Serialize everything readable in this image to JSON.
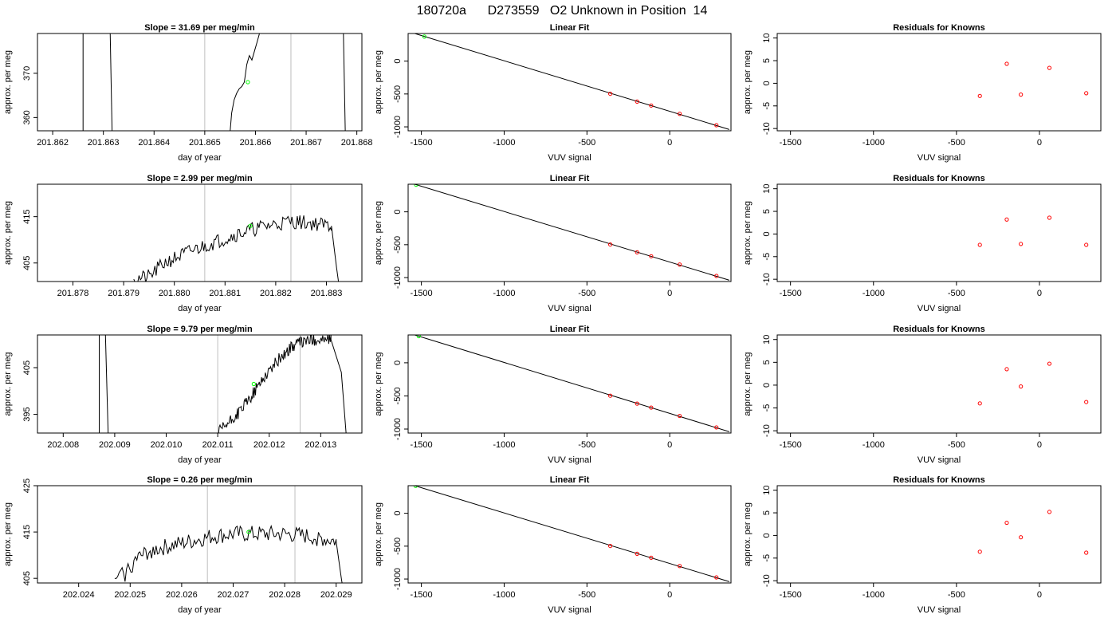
{
  "main_title": "180720a      D273559   O2 Unknown in Position  14",
  "colors": {
    "trace": "#000000",
    "guide": "#bebebe",
    "unknown": "#00ff00",
    "known": "#ff0000"
  },
  "chart_data": [
    {
      "type": "line",
      "panel": "slope-row-1",
      "title": "Slope =  31.69  per meg/min",
      "xlabel": "day of year",
      "ylabel": "approx. per meg",
      "xlim": [
        201.8617,
        201.8681
      ],
      "ylim": [
        357,
        379
      ],
      "xticks": [
        201.862,
        201.863,
        201.864,
        201.865,
        201.866,
        201.867,
        201.868
      ],
      "xtick_labels": [
        "201.862",
        "201.863",
        "201.864",
        "201.865",
        "201.866",
        "201.867",
        "201.868"
      ],
      "yticks": [
        360,
        370
      ],
      "ytick_labels": [
        "360",
        "370"
      ],
      "vlines": [
        201.865,
        201.8667
      ],
      "segments": [
        [
          [
            201.8626,
            340
          ],
          [
            201.8626,
            400
          ]
        ],
        [
          [
            201.8631,
            400
          ],
          [
            201.8632,
            340
          ]
        ],
        [
          [
            201.86545,
            350
          ],
          [
            201.86553,
            361
          ],
          [
            201.86558,
            364
          ],
          [
            201.86563,
            365.5
          ],
          [
            201.86568,
            366.5
          ],
          [
            201.86573,
            367
          ],
          [
            201.86578,
            368
          ],
          [
            201.86583,
            372
          ],
          [
            201.86588,
            374
          ],
          [
            201.86593,
            373
          ],
          [
            201.86598,
            375
          ],
          [
            201.86603,
            377
          ],
          [
            201.86608,
            379
          ],
          [
            201.8662,
            390
          ]
        ],
        [
          [
            201.8677,
            400
          ],
          [
            201.8678,
            340
          ]
        ]
      ],
      "unknown_point": [
        201.86585,
        368
      ]
    },
    {
      "type": "scatter",
      "panel": "linear-fit-row-1",
      "title": "Linear Fit",
      "xlabel": "VUV signal",
      "ylabel": "approx. per meg",
      "xlim": [
        -1580,
        370
      ],
      "ylim": [
        -1060,
        420
      ],
      "xticks": [
        -1500,
        -1000,
        -500,
        0
      ],
      "xtick_labels": [
        "-1500",
        "-1000",
        "-500",
        "0"
      ],
      "yticks": [
        -1000,
        -500,
        0
      ],
      "ytick_labels": [
        "-1000",
        "-500",
        "0"
      ],
      "fit_line": [
        [
          -1540,
          420
        ],
        [
          360,
          -1040
        ]
      ],
      "known_points": [
        [
          -359,
          -497
        ],
        [
          -197,
          -616
        ],
        [
          -112,
          -676
        ],
        [
          60,
          -802
        ],
        [
          282,
          -975
        ]
      ],
      "unknown_point": [
        -1482,
        373
      ]
    },
    {
      "type": "scatter",
      "panel": "residuals-row-1",
      "title": "Residuals for Knowns",
      "xlabel": "VUV signal",
      "ylabel": "approx. per meg",
      "xlim": [
        -1580,
        370
      ],
      "ylim": [
        -10.5,
        11
      ],
      "xticks": [
        -1500,
        -1000,
        -500,
        0
      ],
      "xtick_labels": [
        "-1500",
        "-1000",
        "-500",
        "0"
      ],
      "yticks": [
        -10,
        -5,
        0,
        5,
        10
      ],
      "ytick_labels": [
        "-10",
        "-5",
        "0",
        "5",
        "10"
      ],
      "known_points": [
        [
          -359,
          -2.8
        ],
        [
          -197,
          4.3
        ],
        [
          -112,
          -2.5
        ],
        [
          60,
          3.4
        ],
        [
          282,
          -2.2
        ]
      ]
    },
    {
      "type": "line",
      "panel": "slope-row-2",
      "title": "Slope =  2.99  per meg/min",
      "xlabel": "day of year",
      "ylabel": "approx. per meg",
      "xlim": [
        201.8773,
        201.8837
      ],
      "ylim": [
        401,
        422
      ],
      "xticks": [
        201.878,
        201.879,
        201.88,
        201.881,
        201.882,
        201.883
      ],
      "xtick_labels": [
        "201.878",
        "201.879",
        "201.880",
        "201.881",
        "201.882",
        "201.883"
      ],
      "yticks": [
        405,
        415
      ],
      "ytick_labels": [
        "405",
        "415"
      ],
      "vlines": [
        201.8806,
        201.8823
      ],
      "trace": {
        "start": 201.8792,
        "end": 201.8831,
        "seed": 21,
        "noise": 1.6,
        "levels": [
          [
            201.8792,
            401.5
          ],
          [
            201.8795,
            402
          ],
          [
            201.8798,
            405
          ],
          [
            201.8803,
            407.5
          ],
          [
            201.8808,
            409.5
          ],
          [
            201.8813,
            411.5
          ],
          [
            201.8818,
            413
          ],
          [
            201.8823,
            414
          ],
          [
            201.8828,
            413.5
          ],
          [
            201.8831,
            413
          ]
        ],
        "tail": [
          [
            201.8831,
            413
          ],
          [
            201.8832,
            404
          ],
          [
            201.8833,
            396
          ]
        ]
      },
      "unknown_point": [
        201.8815,
        413
      ]
    },
    {
      "type": "scatter",
      "panel": "linear-fit-row-2",
      "title": "Linear Fit",
      "xlabel": "VUV signal",
      "ylabel": "approx. per meg",
      "xlim": [
        -1580,
        370
      ],
      "ylim": [
        -1060,
        420
      ],
      "xticks": [
        -1500,
        -1000,
        -500,
        0
      ],
      "xtick_labels": [
        "-1500",
        "-1000",
        "-500",
        "0"
      ],
      "yticks": [
        -1000,
        -500,
        0
      ],
      "ytick_labels": [
        "-1000",
        "-500",
        "0"
      ],
      "fit_line": [
        [
          -1540,
          420
        ],
        [
          360,
          -1040
        ]
      ],
      "known_points": [
        [
          -359,
          -497
        ],
        [
          -197,
          -616
        ],
        [
          -112,
          -676
        ],
        [
          60,
          -802
        ],
        [
          282,
          -975
        ]
      ],
      "unknown_point": [
        -1532,
        412
      ]
    },
    {
      "type": "scatter",
      "panel": "residuals-row-2",
      "title": "Residuals for Knowns",
      "xlabel": "VUV signal",
      "ylabel": "approx. per meg",
      "xlim": [
        -1580,
        370
      ],
      "ylim": [
        -10.5,
        11
      ],
      "xticks": [
        -1500,
        -1000,
        -500,
        0
      ],
      "xtick_labels": [
        "-1500",
        "-1000",
        "-500",
        "0"
      ],
      "yticks": [
        -10,
        -5,
        0,
        5,
        10
      ],
      "ytick_labels": [
        "-10",
        "-5",
        "0",
        "5",
        "10"
      ],
      "known_points": [
        [
          -359,
          -2.4
        ],
        [
          -197,
          3.2
        ],
        [
          -112,
          -2.2
        ],
        [
          60,
          3.6
        ],
        [
          282,
          -2.4
        ]
      ]
    },
    {
      "type": "line",
      "panel": "slope-row-3",
      "title": "Slope =  9.79  per meg/min",
      "xlabel": "day of year",
      "ylabel": "approx. per meg",
      "xlim": [
        202.0075,
        202.0138
      ],
      "ylim": [
        391,
        412
      ],
      "xticks": [
        202.008,
        202.009,
        202.01,
        202.011,
        202.012,
        202.013
      ],
      "xtick_labels": [
        "202.008",
        "202.009",
        "202.010",
        "202.011",
        "202.012",
        "202.013"
      ],
      "yticks": [
        395,
        405
      ],
      "ytick_labels": [
        "395",
        "405"
      ],
      "vlines": [
        202.011,
        202.0126
      ],
      "segments": [
        [
          [
            202.0087,
            380
          ],
          [
            202.0087,
            420
          ]
        ],
        [
          [
            202.0088,
            420
          ],
          [
            202.0089,
            380
          ]
        ]
      ],
      "trace": {
        "start": 202.011,
        "end": 202.0132,
        "seed": 57,
        "noise": 1.3,
        "levels": [
          [
            202.011,
            391
          ],
          [
            202.0113,
            394
          ],
          [
            202.0116,
            398
          ],
          [
            202.0119,
            403
          ],
          [
            202.0122,
            407
          ],
          [
            202.0125,
            410
          ],
          [
            202.0128,
            411
          ],
          [
            202.0132,
            411
          ]
        ],
        "tail": [
          [
            202.0132,
            411
          ],
          [
            202.0134,
            404
          ],
          [
            202.0135,
            390
          ]
        ]
      },
      "unknown_point": [
        202.0117,
        401.5
      ]
    },
    {
      "type": "scatter",
      "panel": "linear-fit-row-3",
      "title": "Linear Fit",
      "xlabel": "VUV signal",
      "ylabel": "approx. per meg",
      "xlim": [
        -1580,
        370
      ],
      "ylim": [
        -1060,
        420
      ],
      "xticks": [
        -1500,
        -1000,
        -500,
        0
      ],
      "xtick_labels": [
        "-1500",
        "-1000",
        "-500",
        "0"
      ],
      "yticks": [
        -1000,
        -500,
        0
      ],
      "ytick_labels": [
        "-1000",
        "-500",
        "0"
      ],
      "fit_line": [
        [
          -1540,
          420
        ],
        [
          360,
          -1040
        ]
      ],
      "known_points": [
        [
          -359,
          -497
        ],
        [
          -197,
          -616
        ],
        [
          -112,
          -676
        ],
        [
          60,
          -802
        ],
        [
          282,
          -975
        ]
      ],
      "unknown_point": [
        -1516,
        402
      ]
    },
    {
      "type": "scatter",
      "panel": "residuals-row-3",
      "title": "Residuals for Knowns",
      "xlabel": "VUV signal",
      "ylabel": "approx. per meg",
      "xlim": [
        -1580,
        370
      ],
      "ylim": [
        -10.5,
        11
      ],
      "xticks": [
        -1500,
        -1000,
        -500,
        0
      ],
      "xtick_labels": [
        "-1500",
        "-1000",
        "-500",
        "0"
      ],
      "yticks": [
        -10,
        -5,
        0,
        5,
        10
      ],
      "ytick_labels": [
        "-10",
        "-5",
        "0",
        "5",
        "10"
      ],
      "known_points": [
        [
          -359,
          -4.0
        ],
        [
          -197,
          3.5
        ],
        [
          -112,
          -0.3
        ],
        [
          60,
          4.7
        ],
        [
          282,
          -3.7
        ]
      ]
    },
    {
      "type": "line",
      "panel": "slope-row-4",
      "title": "Slope =  0.26  per meg/min",
      "xlabel": "day of year",
      "ylabel": "approx. per meg",
      "xlim": [
        202.0232,
        202.0295
      ],
      "ylim": [
        404,
        425
      ],
      "xticks": [
        202.024,
        202.025,
        202.026,
        202.027,
        202.028,
        202.029
      ],
      "xtick_labels": [
        "202.024",
        "202.025",
        "202.026",
        "202.027",
        "202.028",
        "202.029"
      ],
      "yticks": [
        405,
        415,
        425
      ],
      "ytick_labels": [
        "405",
        "415",
        "425"
      ],
      "vlines": [
        202.0265,
        202.0282
      ],
      "trace": {
        "start": 202.0247,
        "end": 202.029,
        "seed": 93,
        "noise": 1.8,
        "levels": [
          [
            202.0247,
            405
          ],
          [
            202.0249,
            406
          ],
          [
            202.0251,
            409
          ],
          [
            202.0254,
            411
          ],
          [
            202.0258,
            412
          ],
          [
            202.0262,
            413
          ],
          [
            202.0266,
            414
          ],
          [
            202.027,
            414.5
          ],
          [
            202.0275,
            414.5
          ],
          [
            202.028,
            414.5
          ],
          [
            202.0285,
            414
          ],
          [
            202.029,
            413
          ]
        ],
        "tail": [
          [
            202.029,
            413
          ],
          [
            202.0291,
            405
          ],
          [
            202.0292,
            398
          ]
        ]
      },
      "unknown_point": [
        202.0273,
        415
      ]
    },
    {
      "type": "scatter",
      "panel": "linear-fit-row-4",
      "title": "Linear Fit",
      "xlabel": "VUV signal",
      "ylabel": "approx. per meg",
      "xlim": [
        -1580,
        370
      ],
      "ylim": [
        -1060,
        420
      ],
      "xticks": [
        -1500,
        -1000,
        -500,
        0
      ],
      "xtick_labels": [
        "-1500",
        "-1000",
        "-500",
        "0"
      ],
      "yticks": [
        -1000,
        -500,
        0
      ],
      "ytick_labels": [
        "-1000",
        "-500",
        "0"
      ],
      "fit_line": [
        [
          -1540,
          420
        ],
        [
          360,
          -1040
        ]
      ],
      "known_points": [
        [
          -359,
          -497
        ],
        [
          -197,
          -616
        ],
        [
          -112,
          -676
        ],
        [
          60,
          -802
        ],
        [
          282,
          -975
        ]
      ],
      "unknown_point": [
        -1535,
        417
      ]
    },
    {
      "type": "scatter",
      "panel": "residuals-row-4",
      "title": "Residuals for Knowns",
      "xlabel": "VUV signal",
      "ylabel": "approx. per meg",
      "xlim": [
        -1580,
        370
      ],
      "ylim": [
        -10.5,
        11
      ],
      "xticks": [
        -1500,
        -1000,
        -500,
        0
      ],
      "xtick_labels": [
        "-1500",
        "-1000",
        "-500",
        "0"
      ],
      "yticks": [
        -10,
        -5,
        0,
        5,
        10
      ],
      "ytick_labels": [
        "-10",
        "-5",
        "0",
        "5",
        "10"
      ],
      "known_points": [
        [
          -359,
          -3.6
        ],
        [
          -197,
          2.8
        ],
        [
          -112,
          -0.4
        ],
        [
          60,
          5.2
        ],
        [
          282,
          -3.8
        ]
      ]
    }
  ]
}
